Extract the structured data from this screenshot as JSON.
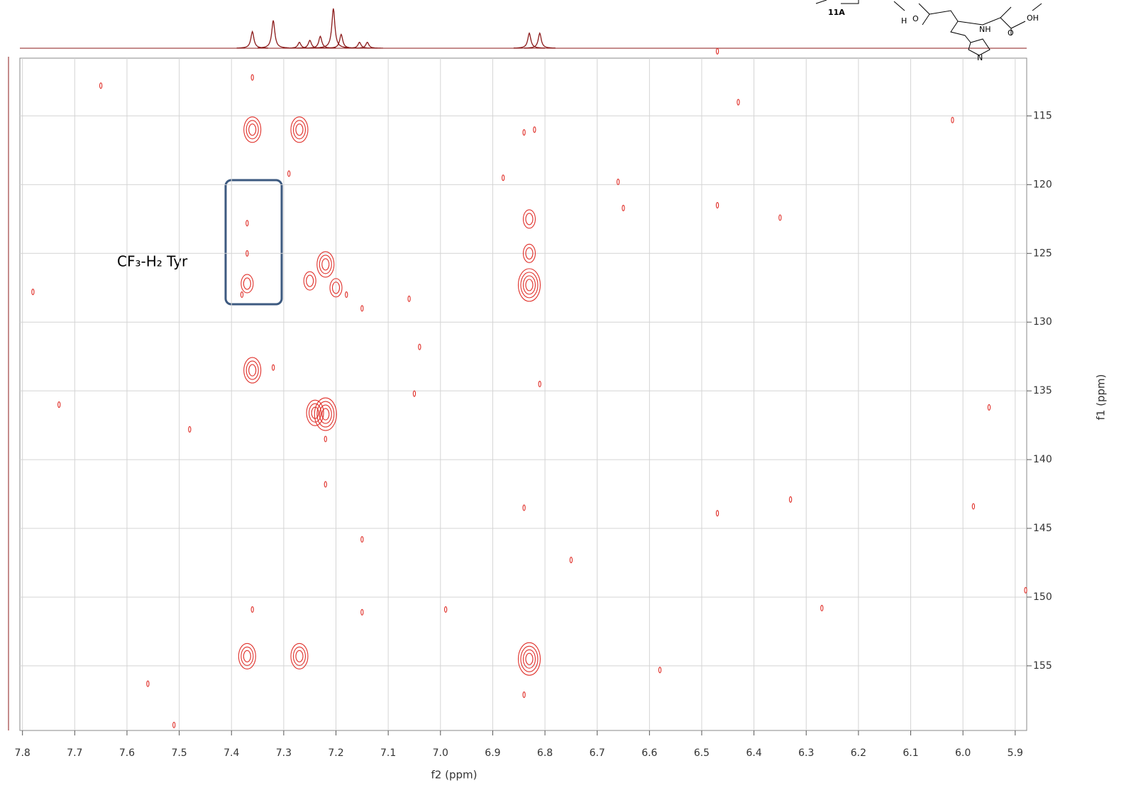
{
  "chart_data": {
    "type": "scatter",
    "xlabel": "f2 (ppm)",
    "ylabel": "f1 (ppm)",
    "annotation": "CF₃-H₂ Tyr",
    "xlim": [
      7.805,
      5.878
    ],
    "xticks": [
      7.8,
      7.7,
      7.6,
      7.5,
      7.4,
      7.3,
      7.2,
      7.1,
      {
        "value": 7,
        "label": "7.0"
      },
      6.9,
      6.8,
      6.7,
      6.6,
      6.5,
      6.4,
      6.3,
      6.2,
      6.1,
      {
        "value": 6,
        "label": "6.0"
      },
      5.9
    ],
    "ylim": [
      110.8,
      159.7
    ],
    "yticks": [
      115,
      120,
      125,
      130,
      135,
      140,
      145,
      150,
      155
    ],
    "grid": true,
    "color": "#e0302a",
    "x": [
      7.36,
      7.27,
      7.36,
      7.29,
      7.37,
      7.37,
      7.37,
      7.22,
      7.25,
      7.2,
      7.18,
      7.15,
      7.38,
      7.06,
      6.83,
      6.83,
      6.83,
      6.82,
      6.84,
      6.88,
      6.66,
      6.65,
      6.47,
      6.35,
      6.47,
      6.43,
      6.02,
      7.65,
      7.36,
      7.32,
      7.04,
      7.05,
      6.81,
      7.22,
      7.24,
      7.22,
      7.73,
      7.48,
      5.95,
      7.22,
      6.84,
      6.47,
      6.33,
      5.98,
      7.15,
      6.75,
      7.78,
      7.36,
      7.15,
      6.99,
      6.27,
      5.88,
      7.37,
      7.27,
      6.83,
      7.56,
      7.51,
      6.84,
      6.58
    ],
    "y": [
      116,
      116,
      112.2,
      119.2,
      122.8,
      125,
      127.2,
      125.8,
      127,
      127.5,
      128,
      129,
      128,
      128.3,
      127.3,
      125,
      122.5,
      116,
      116.2,
      119.5,
      119.8,
      121.7,
      121.5,
      122.4,
      110.3,
      114,
      115.3,
      112.8,
      133.5,
      133.3,
      131.8,
      135.2,
      134.5,
      136.7,
      136.6,
      138.5,
      136,
      137.8,
      136.2,
      141.8,
      143.5,
      143.9,
      142.9,
      143.4,
      145.8,
      147.3,
      127.8,
      150.9,
      151.1,
      150.9,
      150.8,
      149.5,
      154.3,
      154.3,
      154.5,
      156.3,
      159.3,
      157.1,
      155.3
    ],
    "levels": [
      3,
      3,
      1,
      1,
      1,
      1,
      2,
      3,
      2,
      2,
      1,
      1,
      1,
      1,
      4,
      2,
      2,
      1,
      1,
      1,
      1,
      1,
      1,
      1,
      1,
      1,
      1,
      1,
      3,
      1,
      1,
      1,
      1,
      4,
      3,
      1,
      1,
      1,
      1,
      1,
      1,
      1,
      1,
      1,
      1,
      1,
      1,
      1,
      1,
      1,
      1,
      1,
      3,
      3,
      4,
      1,
      1,
      1,
      1
    ],
    "projection": {
      "color": "#8b1a1a",
      "x": [
        7.36,
        7.32,
        7.27,
        7.25,
        7.23,
        7.205,
        7.19,
        7.155,
        7.14,
        6.83,
        6.81
      ],
      "values": [
        0.42,
        0.7,
        0.15,
        0.2,
        0.3,
        1,
        0.35,
        0.15,
        0.15,
        0.38,
        0.38
      ]
    }
  },
  "structure_labels": [
    "11A",
    "H",
    "O",
    "NH",
    "OH",
    "O",
    "N"
  ]
}
